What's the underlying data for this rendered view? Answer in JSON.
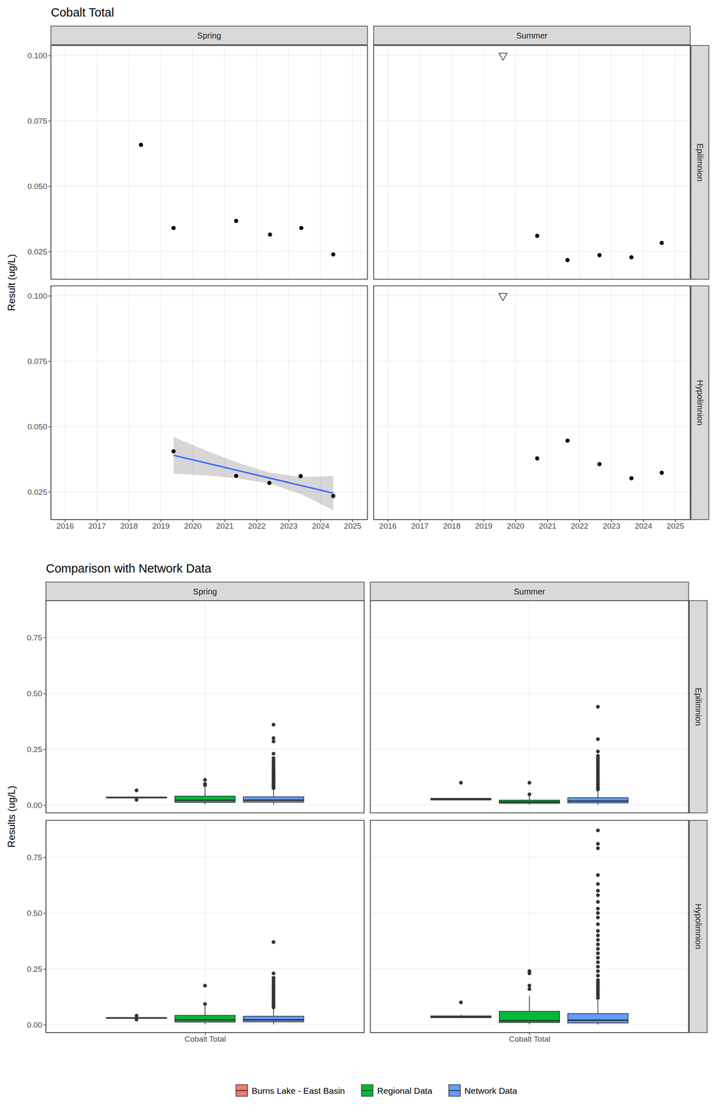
{
  "chart_data": [
    {
      "type": "scatter",
      "title": "Cobalt Total",
      "y_label": "Result (ug/L)",
      "columns": [
        "Spring",
        "Summer"
      ],
      "rows": [
        "Epilimnion",
        "Hypolimnion"
      ],
      "xlim": [
        2015.56,
        2025.47
      ],
      "xticks": [
        2016,
        2017,
        2018,
        2019,
        2020,
        2021,
        2022,
        2023,
        2024,
        2025
      ],
      "ylim": [
        0.0144,
        0.1038
      ],
      "yticks": [
        0.025,
        {
          "value": 0.05,
          "label": "0.050"
        },
        0.075,
        {
          "value": 0.1,
          "label": "0.100"
        }
      ],
      "grid": true,
      "marker": "circle",
      "color": "#000000",
      "panels": [
        [
          {
            "x": [
              2018.38,
              2019.4,
              2021.36,
              2022.42,
              2023.4,
              2024.4
            ],
            "values": [
              0.0658,
              0.034,
              0.0367,
              0.0315,
              0.034,
              0.0239
            ]
          },
          {
            "x": [
              2020.68,
              2021.63,
              2022.63,
              2023.63,
              2024.58
            ],
            "values": [
              0.031,
              0.0217,
              0.0236,
              0.0228,
              0.0283
            ],
            "censored": {
              "x": [
                2019.61
              ],
              "values": [
                0.1
              ],
              "marker": "triangle-down"
            }
          }
        ],
        [
          {
            "x": [
              2019.4,
              2021.36,
              2022.4,
              2023.38,
              2024.4
            ],
            "values": [
              0.0405,
              0.0311,
              0.0284,
              0.031,
              0.0234
            ],
            "trend": {
              "x": [
                2019.4,
                2020.4,
                2021.4,
                2022.4,
                2023.4,
                2024.4
              ],
              "values": [
                0.039,
                0.0361,
                0.0332,
                0.0303,
                0.0274,
                0.0245
              ],
              "lower": [
                0.032,
                0.0313,
                0.0302,
                0.0282,
                0.0241,
                0.018
              ],
              "upper": [
                0.046,
                0.0409,
                0.0362,
                0.0324,
                0.0307,
                0.031
              ],
              "color": "#3366FF"
            }
          },
          {
            "x": [
              2020.68,
              2021.63,
              2022.63,
              2023.63,
              2024.58
            ],
            "values": [
              0.0378,
              0.0446,
              0.0356,
              0.0302,
              0.0323
            ],
            "censored": {
              "x": [
                2019.61
              ],
              "values": [
                0.1
              ],
              "marker": "triangle-down"
            }
          }
        ]
      ]
    },
    {
      "type": "box",
      "title": "Comparison with Network Data",
      "y_label": "Results (ug/L)",
      "columns": [
        "Spring",
        "Summer"
      ],
      "rows": [
        "Epilimnion",
        "Hypolimnion"
      ],
      "categories": [
        "Cobalt Total"
      ],
      "ylim": [
        -0.035,
        0.915
      ],
      "yticks": [
        {
          "value": 0,
          "label": "0.00"
        },
        0.25,
        {
          "value": 0.5,
          "label": "0.50"
        },
        0.75
      ],
      "grid": true,
      "legend": "bottom",
      "series": [
        {
          "name": "Burns Lake - East Basin",
          "color": "#F8766D"
        },
        {
          "name": "Regional Data",
          "color": "#00BA38"
        },
        {
          "name": "Network Data",
          "color": "#619CFF"
        }
      ],
      "panels": [
        [
          {
            "boxes": [
              {
                "low": 0.0315,
                "q1": 0.0322,
                "median": 0.034,
                "q3": 0.036,
                "high": 0.0367,
                "outliers": [
                  0.0658,
                  0.0239
                ]
              },
              {
                "low": 0.004,
                "q1": 0.012,
                "median": 0.022,
                "q3": 0.04,
                "high": 0.08,
                "outliers": [
                  0.089,
                  0.095,
                  0.113
                ]
              },
              {
                "low": 0.002,
                "q1": 0.013,
                "median": 0.022,
                "q3": 0.037,
                "high": 0.072,
                "outliers": [
                  0.076,
                  0.08,
                  0.085,
                  0.09,
                  0.095,
                  0.1,
                  0.105,
                  0.11,
                  0.115,
                  0.12,
                  0.125,
                  0.13,
                  0.135,
                  0.14,
                  0.145,
                  0.15,
                  0.155,
                  0.16,
                  0.17,
                  0.18,
                  0.19,
                  0.2,
                  0.21,
                  0.23,
                  0.285,
                  0.3,
                  0.36
                ]
              }
            ]
          },
          {
            "boxes": [
              {
                "low": 0.0217,
                "q1": 0.023,
                "median": 0.026,
                "q3": 0.03,
                "high": 0.031,
                "outliers": [
                  0.1
                ]
              },
              {
                "low": 0.002,
                "q1": 0.008,
                "median": 0.014,
                "q3": 0.022,
                "high": 0.042,
                "outliers": [
                  0.048,
                  0.1
                ]
              },
              {
                "low": 0.001,
                "q1": 0.01,
                "median": 0.018,
                "q3": 0.033,
                "high": 0.066,
                "outliers": [
                  0.07,
                  0.075,
                  0.08,
                  0.09,
                  0.1,
                  0.11,
                  0.12,
                  0.13,
                  0.14,
                  0.15,
                  0.16,
                  0.17,
                  0.18,
                  0.19,
                  0.2,
                  0.21,
                  0.22,
                  0.24,
                  0.295,
                  0.44
                ]
              }
            ]
          }
        ],
        [
          {
            "boxes": [
              {
                "low": 0.0284,
                "q1": 0.0284,
                "median": 0.031,
                "q3": 0.0311,
                "high": 0.0311,
                "outliers": [
                  0.0405,
                  0.0234
                ]
              },
              {
                "low": 0.003,
                "q1": 0.012,
                "median": 0.022,
                "q3": 0.042,
                "high": 0.085,
                "outliers": [
                  0.093,
                  0.175
                ]
              },
              {
                "low": 0.002,
                "q1": 0.013,
                "median": 0.022,
                "q3": 0.038,
                "high": 0.074,
                "outliers": [
                  0.078,
                  0.085,
                  0.09,
                  0.1,
                  0.11,
                  0.12,
                  0.13,
                  0.14,
                  0.15,
                  0.16,
                  0.17,
                  0.18,
                  0.19,
                  0.2,
                  0.21,
                  0.23,
                  0.37
                ]
              }
            ]
          },
          {
            "boxes": [
              {
                "low": 0.0302,
                "q1": 0.0318,
                "median": 0.035,
                "q3": 0.0395,
                "high": 0.0446,
                "outliers": [
                  0.1
                ]
              },
              {
                "low": 0.002,
                "q1": 0.01,
                "median": 0.018,
                "q3": 0.06,
                "high": 0.13,
                "outliers": [
                  0.16,
                  0.175,
                  0.23,
                  0.24
                ]
              },
              {
                "low": 0.001,
                "q1": 0.008,
                "median": 0.02,
                "q3": 0.05,
                "high": 0.11,
                "outliers": [
                  0.12,
                  0.13,
                  0.14,
                  0.15,
                  0.16,
                  0.17,
                  0.18,
                  0.19,
                  0.2,
                  0.22,
                  0.24,
                  0.26,
                  0.28,
                  0.3,
                  0.32,
                  0.34,
                  0.36,
                  0.38,
                  0.4,
                  0.42,
                  0.45,
                  0.48,
                  0.5,
                  0.52,
                  0.55,
                  0.58,
                  0.6,
                  0.63,
                  0.67,
                  0.79,
                  0.81,
                  0.87
                ]
              }
            ]
          }
        ]
      ]
    }
  ]
}
